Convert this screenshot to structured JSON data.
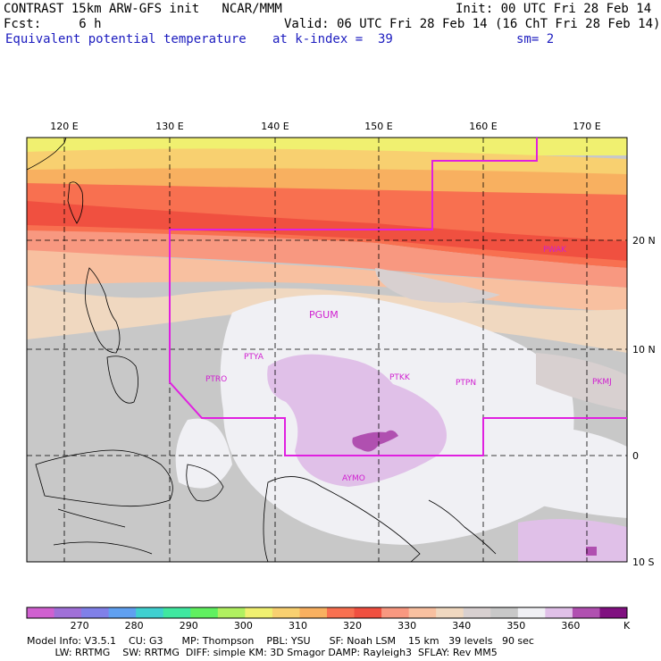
{
  "header": {
    "line1_left": "CONTRAST 15km ARW-GFS init   NCAR/MMM",
    "line1_right": "Init: 00 UTC Fri 28 Feb 14",
    "line2_left": "Fcst:     6 h",
    "line2_right": "Valid: 06 UTC Fri 28 Feb 14 (16 ChT Fri 28 Feb 14)",
    "line3_field": "Equivalent potential temperature",
    "line3_level": "at k-index =  39",
    "line3_smooth": "sm= 2"
  },
  "map": {
    "lon_labels": [
      "120 E",
      "130 E",
      "140 E",
      "150 E",
      "160 E",
      "170 E"
    ],
    "lat_labels": [
      "20 N",
      "10 N",
      "0",
      "10 S"
    ],
    "stations": [
      {
        "id": "PGUM"
      },
      {
        "id": "PWAK"
      },
      {
        "id": "PTYA"
      },
      {
        "id": "PTRO"
      },
      {
        "id": "PTKK"
      },
      {
        "id": "PTPN"
      },
      {
        "id": "PKMJ"
      },
      {
        "id": "AYMO"
      }
    ],
    "boundary_color": "#e020e0"
  },
  "colorbar": {
    "ticks": [
      "270",
      "280",
      "290",
      "300",
      "310",
      "320",
      "330",
      "340",
      "350",
      "360"
    ],
    "units": "K",
    "colors": [
      "#d060d0",
      "#a070d8",
      "#8080e8",
      "#60a0f0",
      "#40d0d0",
      "#40e8a0",
      "#60f060",
      "#b0f060",
      "#f0f070",
      "#f8d070",
      "#f8b060",
      "#f87050",
      "#f05040",
      "#f89880",
      "#f8c0a0",
      "#f0d8c0",
      "#d8d0d0",
      "#c8c8c8",
      "#f0f0f4",
      "#e0c0e8",
      "#b050b0",
      "#801080"
    ]
  },
  "footer": {
    "line1": "Model Info: V3.5.1    CU: G3      MP: Thompson    PBL: YSU      SF: Noah LSM    15 km   39 levels   90 sec",
    "line2": "         LW: RRTMG    SW: RRTMG  DIFF: simple KM: 3D Smagor DAMP: Rayleigh3  SFLAY: Rev MM5"
  }
}
